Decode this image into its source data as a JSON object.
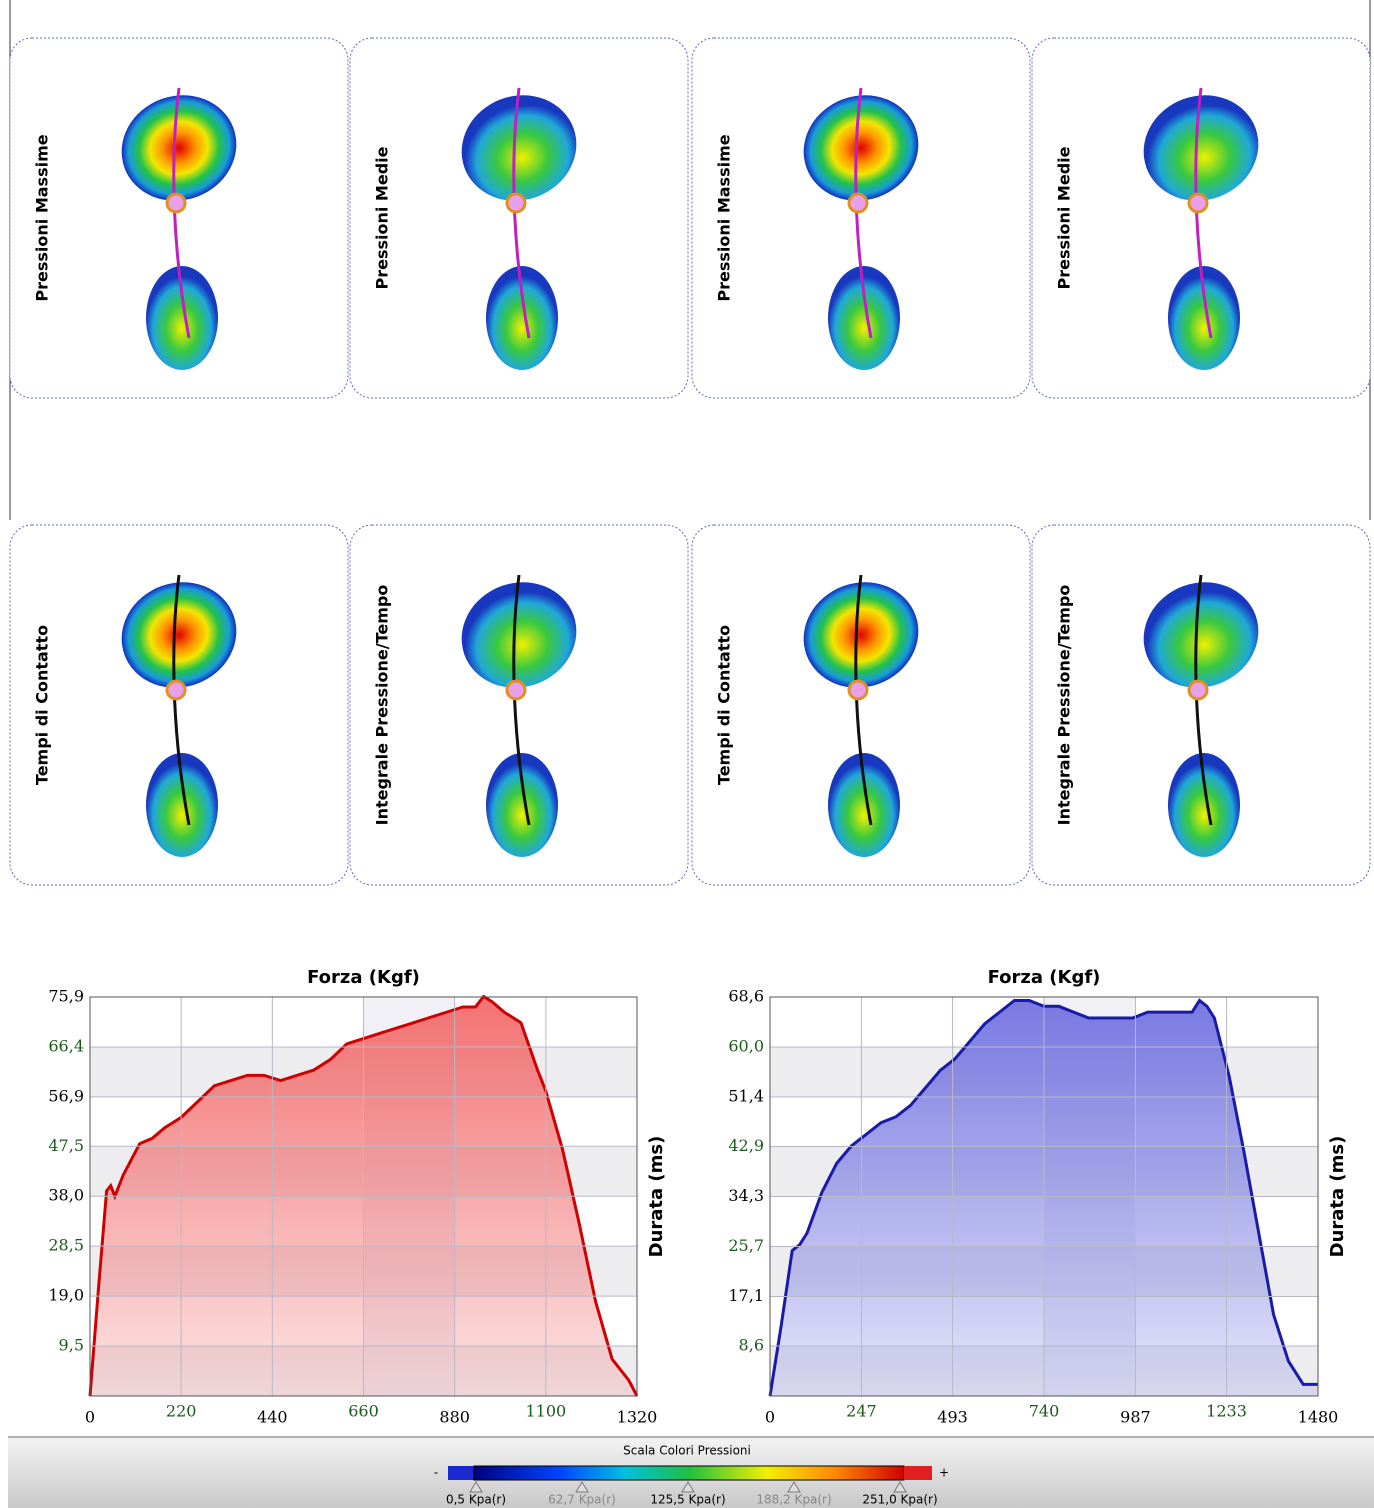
{
  "panels": [
    {
      "label": "Pressioni Massime"
    },
    {
      "label": "Pressioni Medie"
    },
    {
      "label": "Pressioni Massime"
    },
    {
      "label": "Pressioni Medie"
    },
    {
      "label": "Tempi di Contatto"
    },
    {
      "label": "Integrale Pressione/Tempo"
    },
    {
      "label": "Tempi di Contatto"
    },
    {
      "label": "Integrale Pressione/Tempo"
    }
  ],
  "chart_data": [
    {
      "type": "area",
      "title": "Forza (Kgf)",
      "x_label": "Durata (ms)",
      "color": "#d00000",
      "fill": "#f26a6a",
      "x": [
        0,
        20,
        40,
        50,
        60,
        80,
        120,
        150,
        180,
        220,
        260,
        300,
        340,
        380,
        420,
        460,
        500,
        540,
        580,
        620,
        660,
        700,
        740,
        780,
        820,
        860,
        900,
        930,
        950,
        970,
        1000,
        1040,
        1080,
        1100,
        1140,
        1180,
        1220,
        1260,
        1300,
        1320
      ],
      "values": [
        0,
        20,
        39,
        40,
        38,
        42,
        48,
        49,
        51,
        53,
        56,
        59,
        60,
        61,
        61,
        60,
        61,
        62,
        64,
        67,
        68,
        69,
        70,
        71,
        72,
        73,
        74,
        74,
        76,
        75,
        73,
        71,
        62,
        58,
        47,
        33,
        18,
        7,
        3,
        0
      ],
      "xlim": [
        0,
        1320
      ],
      "ylim": [
        0,
        75.9
      ],
      "xticks": [
        0,
        220,
        440,
        660,
        880,
        1100,
        1320
      ],
      "yticks": [
        {
          "value": 9.5,
          "label": "9,5"
        },
        {
          "value": 19.0,
          "label": "19,0"
        },
        {
          "value": 28.5,
          "label": "28,5"
        },
        {
          "value": 38.0,
          "label": "38,0"
        },
        {
          "value": 47.5,
          "label": "47,5"
        },
        {
          "value": 56.9,
          "label": "56,9"
        },
        {
          "value": 66.4,
          "label": "66,4"
        },
        {
          "value": 75.9,
          "label": "75,9"
        }
      ],
      "grid": true
    },
    {
      "type": "area",
      "title": "Forza (Kgf)",
      "x_label": "Durata (ms)",
      "color": "#1a1aa8",
      "fill": "#7272e0",
      "x": [
        0,
        30,
        60,
        80,
        100,
        140,
        180,
        220,
        260,
        300,
        340,
        380,
        420,
        460,
        500,
        540,
        580,
        620,
        660,
        700,
        740,
        780,
        820,
        860,
        900,
        940,
        980,
        1020,
        1060,
        1100,
        1140,
        1160,
        1180,
        1200,
        1240,
        1280,
        1320,
        1360,
        1400,
        1440,
        1480
      ],
      "values": [
        0,
        12,
        25,
        26,
        28,
        35,
        40,
        43,
        45,
        47,
        48,
        50,
        53,
        56,
        58,
        61,
        64,
        66,
        68,
        68,
        67,
        67,
        66,
        65,
        65,
        65,
        65,
        66,
        66,
        66,
        66,
        68,
        67,
        65,
        55,
        42,
        28,
        14,
        6,
        2,
        2
      ],
      "xlim": [
        0,
        1480
      ],
      "ylim": [
        0,
        68.6
      ],
      "xticks": [
        0,
        247,
        493,
        740,
        987,
        1233,
        1480
      ],
      "yticks": [
        {
          "value": 8.6,
          "label": "8,6"
        },
        {
          "value": 17.1,
          "label": "17,1"
        },
        {
          "value": 25.7,
          "label": "25,7"
        },
        {
          "value": 34.3,
          "label": "34,3"
        },
        {
          "value": 42.9,
          "label": "42,9"
        },
        {
          "value": 51.4,
          "label": "51,4"
        },
        {
          "value": 60.0,
          "label": "60,0"
        },
        {
          "value": 68.6,
          "label": "68,6"
        }
      ],
      "grid": true
    }
  ],
  "color_scale": {
    "title": "Scala Colori Pressioni",
    "minus": "-",
    "plus": "+",
    "labels": [
      "0,5 Kpa(r)",
      "62,7 Kpa(r)",
      "125,5 Kpa(r)",
      "188,2 Kpa(r)",
      "251,0 Kpa(r)"
    ]
  }
}
